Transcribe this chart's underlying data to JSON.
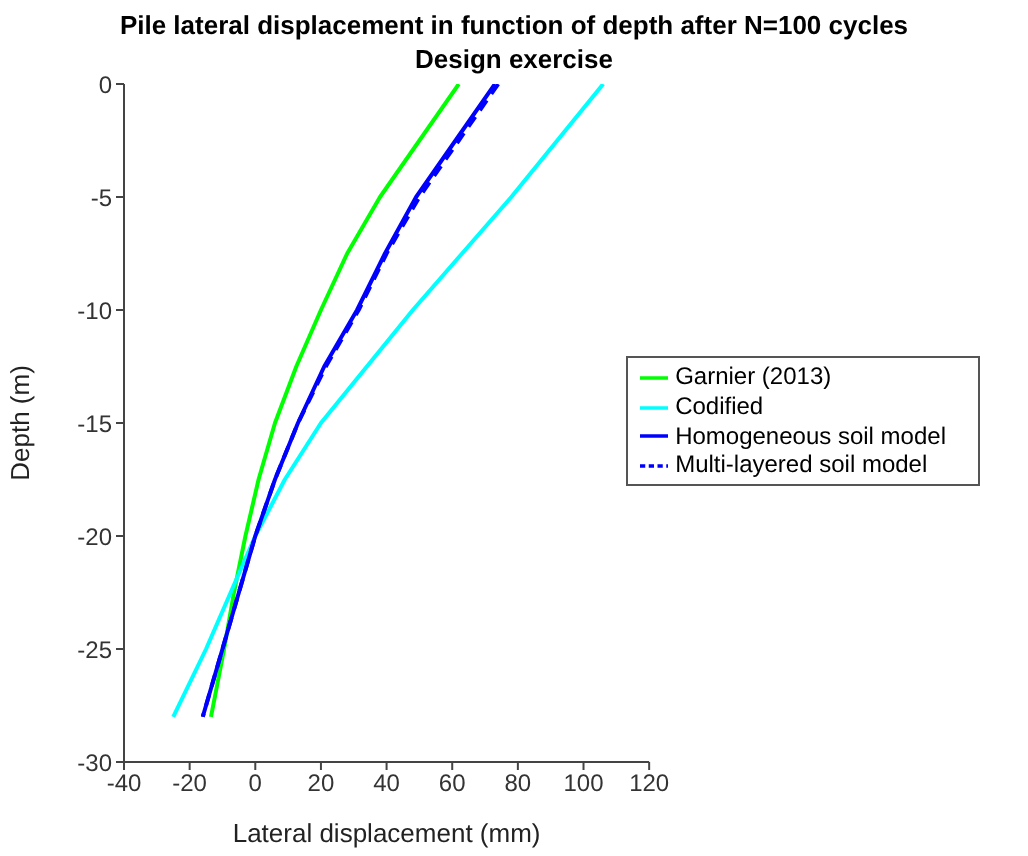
{
  "chart_data": {
    "type": "line",
    "title": "Pile lateral displacement in function of depth after N=100 cycles",
    "subtitle": "Design exercise",
    "xlabel": "Lateral displacement (mm)",
    "ylabel": "Depth (m)",
    "xlim": [
      -40,
      120
    ],
    "xticks": [
      -40,
      -20,
      0,
      20,
      40,
      60,
      80,
      100,
      120
    ],
    "ylim": [
      -30,
      0
    ],
    "yticks": [
      -30,
      -25,
      -20,
      -15,
      -10,
      -5,
      0
    ],
    "grid": false,
    "legend": "right",
    "marker": "none",
    "series": [
      {
        "name": "Garnier (2013)",
        "color": "#00ff00",
        "line_style": "solid",
        "x": [
          62,
          50,
          38,
          28,
          20,
          12.5,
          6,
          1,
          -3,
          -6.5,
          -9.5,
          -13.5
        ],
        "values": [
          0,
          -2.5,
          -5,
          -7.5,
          -10,
          -12.5,
          -15,
          -17.5,
          -20,
          -22.5,
          -25,
          -28
        ]
      },
      {
        "name": "Codified",
        "color": "#00ffff",
        "line_style": "solid",
        "x": [
          106,
          92,
          78,
          63,
          48,
          34,
          20,
          9,
          0,
          -7.5,
          -15,
          -25
        ],
        "values": [
          0,
          -2.5,
          -5,
          -7.5,
          -10,
          -12.5,
          -15,
          -17.5,
          -20,
          -22.5,
          -25,
          -28
        ]
      },
      {
        "name": "Homogeneous soil model",
        "color": "#0000ff",
        "line_style": "solid",
        "x": [
          73,
          61,
          49,
          39.5,
          31,
          21,
          13,
          6,
          0,
          -5,
          -10,
          -16
        ],
        "values": [
          0,
          -2.5,
          -5,
          -7.5,
          -10,
          -12.5,
          -15,
          -17.5,
          -20,
          -22.5,
          -25,
          -28
        ]
      },
      {
        "name": "Multi-layered soil model",
        "color": "#0000ff",
        "line_style": "dashed",
        "x": [
          74,
          62,
          50,
          40,
          31.5,
          21.5,
          13,
          6,
          0,
          -5,
          -10,
          -16
        ],
        "values": [
          0,
          -2.5,
          -5,
          -7.5,
          -10,
          -12.5,
          -15,
          -17.5,
          -20,
          -22.5,
          -25,
          -28
        ]
      }
    ]
  }
}
